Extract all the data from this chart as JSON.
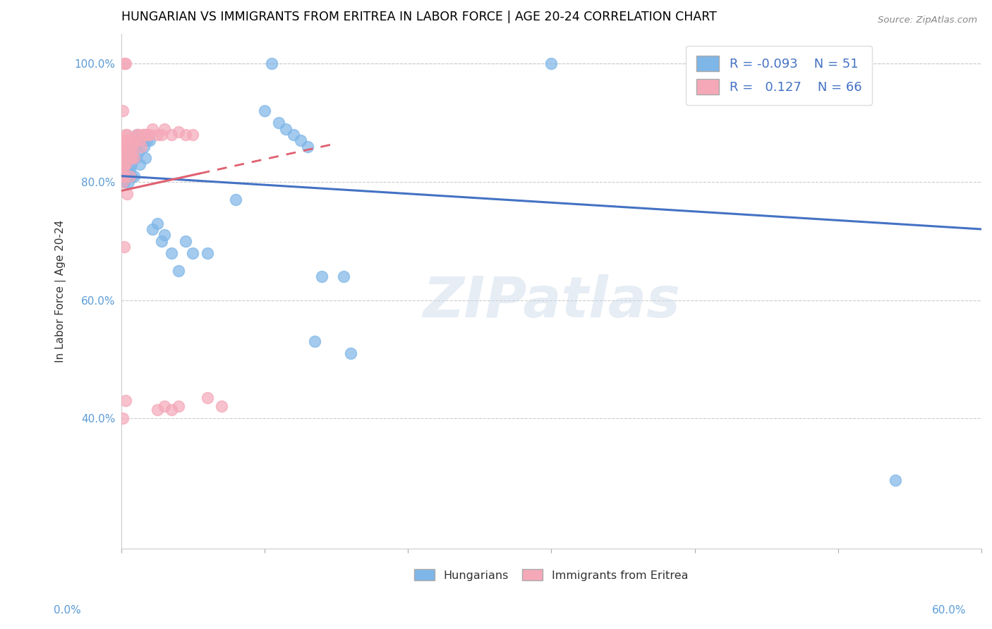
{
  "title": "HUNGARIAN VS IMMIGRANTS FROM ERITREA IN LABOR FORCE | AGE 20-24 CORRELATION CHART",
  "source": "Source: ZipAtlas.com",
  "ylabel": "In Labor Force | Age 20-24",
  "legend_hungarian_R": "-0.093",
  "legend_hungarian_N": "51",
  "legend_eritrea_R": "0.127",
  "legend_eritrea_N": "66",
  "blue_color": "#7EB6E8",
  "pink_color": "#F4A8B8",
  "trend_blue": "#4472C4",
  "trend_pink": "#E06070",
  "watermark": "ZIPatlas",
  "xlim": [
    0.0,
    0.6
  ],
  "ylim": [
    0.18,
    1.05
  ],
  "yticks": [
    0.4,
    0.6,
    0.8,
    1.0
  ],
  "xticks": [
    0.0,
    0.1,
    0.2,
    0.3,
    0.4,
    0.5,
    0.6
  ],
  "hung_x": [
    0.001,
    0.001,
    0.002,
    0.002,
    0.003,
    0.003,
    0.004,
    0.004,
    0.005,
    0.005,
    0.005,
    0.006,
    0.006,
    0.007,
    0.007,
    0.007,
    0.008,
    0.009,
    0.01,
    0.01,
    0.011,
    0.012,
    0.013,
    0.015,
    0.016,
    0.017,
    0.018,
    0.02,
    0.022,
    0.025,
    0.028,
    0.03,
    0.035,
    0.04,
    0.045,
    0.05,
    0.06,
    0.08,
    0.1,
    0.105,
    0.11,
    0.115,
    0.12,
    0.125,
    0.13,
    0.135,
    0.14,
    0.155,
    0.16,
    0.3,
    0.54
  ],
  "hung_y": [
    0.82,
    0.8,
    0.84,
    0.8,
    0.84,
    0.81,
    0.85,
    0.82,
    0.84,
    0.815,
    0.8,
    0.85,
    0.82,
    0.85,
    0.83,
    0.81,
    0.84,
    0.81,
    0.86,
    0.84,
    0.88,
    0.85,
    0.83,
    0.87,
    0.86,
    0.84,
    0.87,
    0.87,
    0.72,
    0.73,
    0.7,
    0.71,
    0.68,
    0.65,
    0.7,
    0.68,
    0.68,
    0.77,
    0.92,
    1.0,
    0.9,
    0.89,
    0.88,
    0.87,
    0.86,
    0.53,
    0.64,
    0.64,
    0.51,
    1.0,
    0.295
  ],
  "erit_x": [
    0.001,
    0.001,
    0.001,
    0.001,
    0.001,
    0.001,
    0.001,
    0.001,
    0.002,
    0.002,
    0.002,
    0.002,
    0.002,
    0.002,
    0.003,
    0.003,
    0.003,
    0.003,
    0.003,
    0.003,
    0.003,
    0.004,
    0.004,
    0.004,
    0.004,
    0.004,
    0.005,
    0.005,
    0.005,
    0.006,
    0.006,
    0.006,
    0.006,
    0.007,
    0.007,
    0.007,
    0.008,
    0.008,
    0.009,
    0.01,
    0.011,
    0.012,
    0.013,
    0.014,
    0.015,
    0.016,
    0.017,
    0.018,
    0.019,
    0.02,
    0.022,
    0.025,
    0.028,
    0.03,
    0.035,
    0.04,
    0.045,
    0.05,
    0.06,
    0.07,
    0.025,
    0.03,
    0.035,
    0.04,
    0.002,
    0.003
  ],
  "erit_y": [
    0.86,
    0.92,
    0.84,
    0.83,
    0.82,
    0.81,
    0.8,
    0.4,
    0.87,
    0.85,
    0.84,
    0.83,
    0.81,
    0.69,
    0.88,
    0.87,
    0.86,
    0.85,
    0.84,
    0.83,
    0.43,
    0.88,
    0.87,
    0.85,
    0.84,
    0.78,
    0.87,
    0.85,
    0.84,
    0.86,
    0.85,
    0.84,
    0.81,
    0.87,
    0.86,
    0.84,
    0.87,
    0.85,
    0.84,
    0.87,
    0.88,
    0.88,
    0.87,
    0.86,
    0.88,
    0.88,
    0.88,
    0.88,
    0.88,
    0.88,
    0.89,
    0.88,
    0.88,
    0.89,
    0.88,
    0.885,
    0.88,
    0.88,
    0.435,
    0.42,
    0.415,
    0.42,
    0.415,
    0.42,
    1.0,
    1.0
  ],
  "trend_h_x0": 0.0,
  "trend_h_x1": 0.6,
  "trend_h_y0": 0.81,
  "trend_h_y1": 0.72,
  "trend_e_x0": 0.0,
  "trend_e_x1": 0.15,
  "trend_e_y0": 0.785,
  "trend_e_y1": 0.865
}
